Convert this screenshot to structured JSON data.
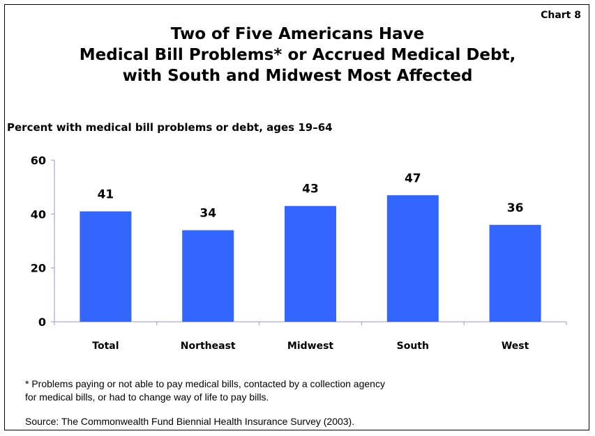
{
  "chart_label": "Chart 8",
  "title_lines": [
    "Two of Five Americans Have",
    "Medical Bill Problems* or Accrued Medical Debt,",
    "with South and Midwest Most Affected"
  ],
  "footnote_lines": [
    "* Problems paying or not able to pay medical bills, contacted by a collection agency",
    "for medical bills, or had to change way of life to pay bills."
  ],
  "source": "Source: The Commonwealth Fund Biennial Health Insurance Survey (2003).",
  "colors": {
    "bar": "#3366ff",
    "axis": "#9999cc",
    "text": "#000000"
  },
  "chart_data": {
    "type": "bar",
    "title": "Percent with medical bill problems or debt, ages 19–64",
    "categories": [
      "Total",
      "Northeast",
      "Midwest",
      "South",
      "West"
    ],
    "values": [
      41,
      34,
      43,
      47,
      36
    ],
    "value_labels": [
      "41",
      "34",
      "43",
      "47",
      "36"
    ],
    "yticks": [
      0,
      20,
      40,
      60
    ],
    "ytick_labels": [
      "0",
      "20",
      "40",
      "60"
    ],
    "ylim": [
      0,
      60
    ],
    "xlabel": "",
    "ylabel": "",
    "grid": false,
    "legend": "none"
  }
}
